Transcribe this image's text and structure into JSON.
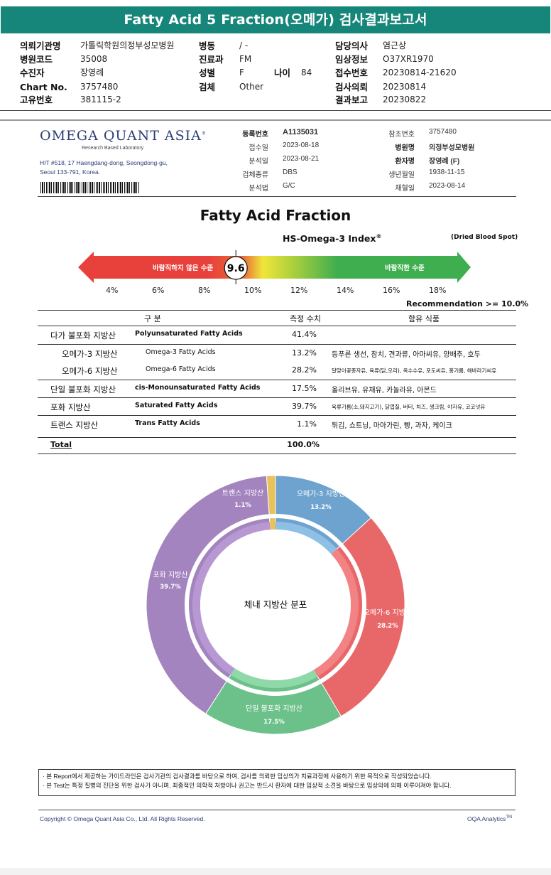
{
  "report_title": "Fatty Acid 5 Fraction(오메가) 검사결과보고서",
  "patient_info": {
    "col1": [
      {
        "label": "의뢰기관명",
        "value": "가톨릭학원의정부성모병원"
      },
      {
        "label": "병원코드",
        "value": "35008"
      },
      {
        "label": "수진자",
        "value": "장영례"
      },
      {
        "label": "Chart No.",
        "value": "3757480"
      },
      {
        "label": "고유번호",
        "value": "381115-2"
      }
    ],
    "col2": [
      {
        "label": "병동",
        "value": "/ -"
      },
      {
        "label": "진료과",
        "value": "FM"
      },
      {
        "label": "성별",
        "value": "F"
      },
      {
        "label": "검체",
        "value": "Other"
      }
    ],
    "age_label": "나이",
    "age_value": "84",
    "col3": [
      {
        "label": "담당의사",
        "value": "염근상"
      },
      {
        "label": "임상정보",
        "value": "O37XR1970"
      },
      {
        "label": "접수번호",
        "value": "20230814-21620"
      },
      {
        "label": "검사의뢰",
        "value": "20230814"
      },
      {
        "label": "결과보고",
        "value": "20230822"
      }
    ]
  },
  "lab": {
    "logo_main": "OMEGA QUANT ASIA",
    "logo_sub": "Research Based Laboratory",
    "address_line1": "HIT #518, 17 Haengdang-dong, Seongdong-gu,",
    "address_line2": "Seoul 133-791, Korea."
  },
  "specimen_left": [
    {
      "label": "등록번호",
      "value": "A1135031",
      "bold": true
    },
    {
      "label": "접수일",
      "value": "2023-08-18"
    },
    {
      "label": "분석일",
      "value": "2023-08-21"
    },
    {
      "label": "검체종류",
      "value": "DBS"
    },
    {
      "label": "분석법",
      "value": "G/C"
    }
  ],
  "specimen_right": [
    {
      "label": "참조번호",
      "value": "3757480"
    },
    {
      "label": "병원명",
      "value": "의정부성모병원",
      "bold": true
    },
    {
      "label": "환자명",
      "value": "장영례 (F)",
      "bold": true
    },
    {
      "label": "생년월일",
      "value": "1938-11-15"
    },
    {
      "label": "채혈일",
      "value": "2023-08-14"
    }
  ],
  "section_title": "Fatty Acid Fraction",
  "index": {
    "title": "HS-Omega-3 Index",
    "reg_mark": "®",
    "sample_type": "(Dried Blood Spot)",
    "value": "9.6",
    "bad_label": "바람직하지 않은 수준",
    "good_label": "바람직한 수준",
    "scale": [
      "4%",
      "6%",
      "8%",
      "10%",
      "12%",
      "14%",
      "16%",
      "18%"
    ],
    "recommendation": "Recommendation  >= 10.0%",
    "colors": {
      "bad": "#e8403a",
      "good": "#3fae4f",
      "mid": "#f0e63a"
    }
  },
  "table": {
    "headers": {
      "category": "구 분",
      "measured": "측정 수치",
      "foods": "함유 식품"
    },
    "rows": [
      {
        "ko": "다가 불포화 지방산",
        "en": "Polyunsaturated Fatty Acids",
        "value": "41.4%",
        "foods": ""
      },
      {
        "ko": "오메가-3 지방산",
        "en": "Omega-3 Fatty Acids",
        "value": "13.2%",
        "foods": "등푸른 생선, 참치, 견과류, 아마씨유, 양배추, 호두"
      },
      {
        "ko": "오메가-6 지방산",
        "en": "Omega-6 Fatty Acids",
        "value": "28.2%",
        "foods": "달맞이꽃종자유, 육류(닭,오리), 옥수수유, 포도씨유, 홍기름, 해바라기씨유"
      },
      {
        "ko": "단일 불포화 지방산",
        "en": "cis-Monounsaturated Fatty Acids",
        "value": "17.5%",
        "foods": "올리브유, 유채유, 카놀라유, 아몬드"
      },
      {
        "ko": "포화 지방산",
        "en": "Saturated Fatty Acids",
        "value": "39.7%",
        "foods": "육류기름(소,돼지고기), 닭껍질, 버터, 치즈, 생크림, 야자유, 코코넛유"
      },
      {
        "ko": "트랜스 지방산",
        "en": "Trans Fatty Acids",
        "value": "1.1%",
        "foods": "튀김, 쇼트닝, 마아가린, 빵, 과자, 케이크"
      }
    ],
    "total_label": "Total",
    "total_value": "100.0%"
  },
  "chart_data": {
    "type": "pie",
    "title": "체내 지방산 분포",
    "categories": [
      "오메가-3 지방산",
      "오메가-6 지방산",
      "단일 불포화 지방산",
      "포화 지방산",
      "트랜스 지방산"
    ],
    "values": [
      13.2,
      28.2,
      17.5,
      39.7,
      1.1
    ],
    "value_labels": [
      "13.2%",
      "28.2%",
      "17.5%",
      "39.7%",
      "1.1%"
    ],
    "colors": [
      "#6fa3cf",
      "#e8686a",
      "#6cc18a",
      "#a384bf",
      "#e8c25a"
    ],
    "inner_colors": [
      "#8ec0e6",
      "#f28283",
      "#8fd8a8",
      "#b898d2",
      "#e8c25a"
    ]
  },
  "notes": [
    "· 본 Report에서 제공하는 가이드라인은 검사기관의 검사결과를 바탕으로 하여, 검사를 의뢰한 임상의가 치료과정에 사용하기 위한 목적으로 작성되었습니다.",
    "· 본 Test는 특정 질병의 진단을 위한 검사가 아니며, 최종적인 의학적 처방이나 권고는 반드시 환자에 대한 임상적 소견을 바탕으로 임상의에 의해 이루어져야 합니다."
  ],
  "footer": {
    "copyright": "Copyright © Omega Quant Asia Co., Ltd.  All Rights Reserved.",
    "brand": "OQA Analytics",
    "tm": "TM"
  }
}
